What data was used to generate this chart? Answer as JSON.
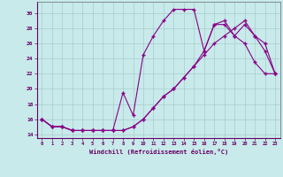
{
  "xlabel": "Windchill (Refroidissement éolien,°C)",
  "xlim": [
    -0.5,
    23.5
  ],
  "ylim": [
    13.5,
    31.5
  ],
  "yticks": [
    14,
    16,
    18,
    20,
    22,
    24,
    26,
    28,
    30
  ],
  "xticks": [
    0,
    1,
    2,
    3,
    4,
    5,
    6,
    7,
    8,
    9,
    10,
    11,
    12,
    13,
    14,
    15,
    16,
    17,
    18,
    19,
    20,
    21,
    22,
    23
  ],
  "bg_color": "#c8eaea",
  "line_color": "#880088",
  "grid_color": "#a8cccc",
  "line1_x": [
    0,
    1,
    2,
    3,
    4,
    5,
    6,
    7,
    8,
    9,
    10,
    11,
    12,
    13,
    14,
    15,
    16,
    17,
    18,
    19,
    20,
    21,
    22,
    23
  ],
  "line1_y": [
    16,
    15,
    15,
    14.5,
    14.5,
    14.5,
    14.5,
    14.5,
    14.5,
    15,
    16,
    17.5,
    19,
    20,
    21.5,
    23,
    24.5,
    26,
    27,
    28,
    29,
    27,
    26,
    22
  ],
  "line2_x": [
    0,
    1,
    2,
    3,
    4,
    5,
    6,
    7,
    8,
    9,
    10,
    11,
    12,
    13,
    14,
    15,
    16,
    17,
    18,
    19,
    20,
    21,
    22,
    23
  ],
  "line2_y": [
    16,
    15,
    15,
    14.5,
    14.5,
    14.5,
    14.5,
    14.5,
    19.5,
    16.5,
    24.5,
    27,
    29,
    30.5,
    30.5,
    30.5,
    25,
    28.5,
    28.5,
    27,
    26,
    23.5,
    22,
    22
  ],
  "line3_x": [
    0,
    1,
    2,
    3,
    4,
    5,
    6,
    7,
    8,
    9,
    10,
    11,
    12,
    13,
    14,
    15,
    16,
    17,
    18,
    19,
    20,
    21,
    22,
    23
  ],
  "line3_y": [
    16,
    15,
    15,
    14.5,
    14.5,
    14.5,
    14.5,
    14.5,
    14.5,
    15,
    16,
    17.5,
    19,
    20,
    21.5,
    23,
    25,
    28.5,
    29,
    27,
    28.5,
    27,
    25,
    22
  ]
}
